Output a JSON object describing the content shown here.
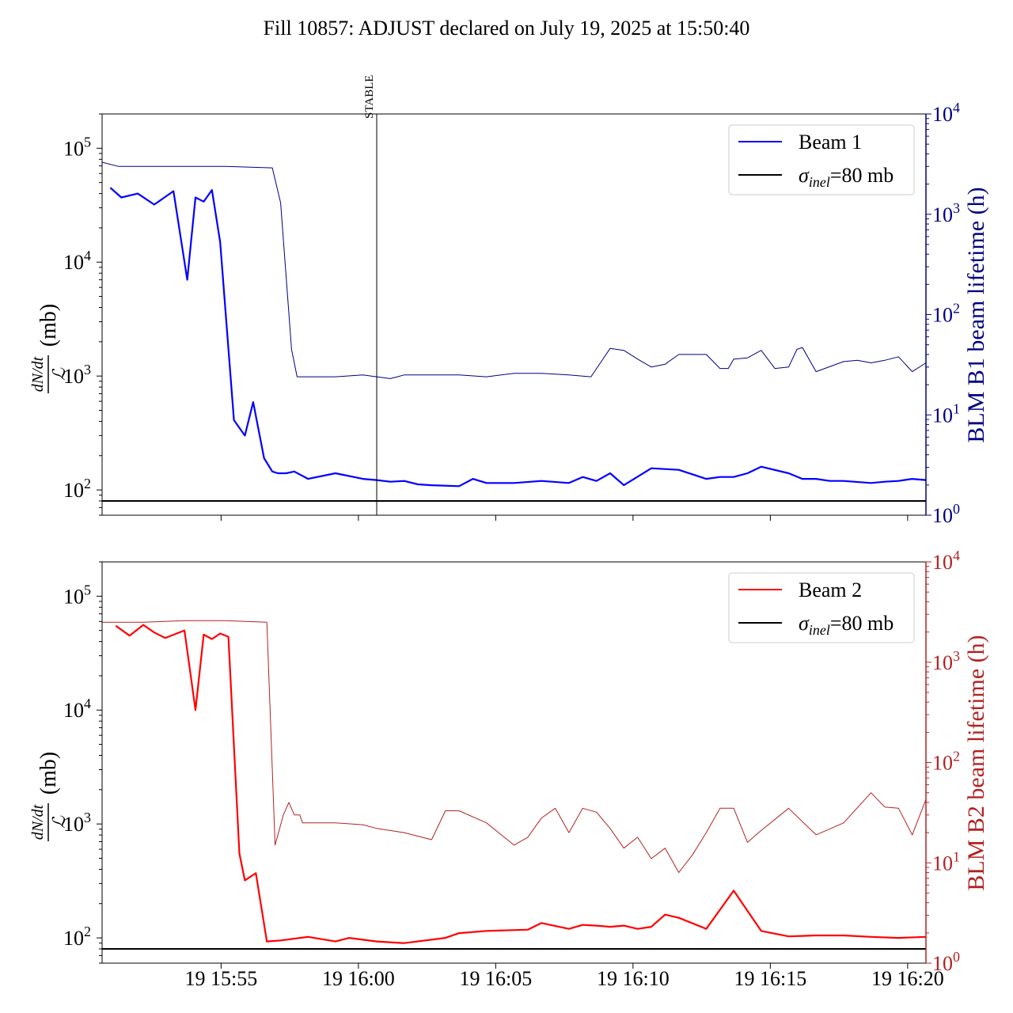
{
  "title": "Fill 10857: ADJUST declared on July 19, 2025 at 15:50:40",
  "colors": {
    "beam1_main": "#0000ff",
    "beam1_lifetime": "#000080",
    "beam1_axis": "#000080",
    "beam2_main": "#ff0000",
    "beam2_lifetime": "#b22222",
    "beam2_axis": "#b22222",
    "sigma": "#000000"
  },
  "x_tick_labels": [
    "19 15:55",
    "19 16:00",
    "19 16:05",
    "19 16:10",
    "19 16:15",
    "19 16:20"
  ],
  "chart_data": [
    {
      "type": "line",
      "panel": "top",
      "title": "Fill 10857: ADJUST declared on July 19, 2025 at 15:50:40",
      "xlabel": "",
      "ylabel": "dN/dt / ℒ (mb)",
      "y2label": "BLM B1 beam lifetime (h)",
      "xlim": [
        "2025-07-19 15:50:40",
        "2025-07-19 16:20:40"
      ],
      "ylim": [
        60,
        200000
      ],
      "y2lim": [
        1,
        10000
      ],
      "yscale": "log",
      "y2scale": "log",
      "grid": false,
      "legend_position": "top-right",
      "yticks": [
        "10^2",
        "10^3",
        "10^4",
        "10^5"
      ],
      "y2ticks": [
        "10^0",
        "10^1",
        "10^2",
        "10^3",
        "10^4"
      ],
      "annotation": {
        "text": "STABLE",
        "x": "2025-07-19 16:00:40"
      },
      "series": [
        {
          "name": "Beam 1",
          "axis": "left",
          "x_min": [
            0.3,
            0.7,
            1.3,
            1.9,
            2.6,
            3.1,
            3.4,
            3.7,
            4.0,
            4.3,
            4.8,
            5.2,
            5.5,
            5.9,
            6.2,
            6.4,
            6.7,
            7.0,
            7.5,
            8.5,
            9.5,
            10.0,
            10.5,
            11.0,
            11.5,
            12.0,
            13.0,
            13.5,
            14.0,
            15.0,
            16.0,
            17.0,
            17.5,
            18.0,
            18.5,
            19.0,
            20.0,
            21.0,
            22.0,
            22.5,
            23.0,
            23.5,
            24.0,
            25.0,
            25.5,
            26.0,
            26.5,
            27.0,
            28.0,
            28.5,
            29.0,
            29.5,
            30.0
          ],
          "values": [
            45000,
            37000,
            40000,
            32000,
            42000,
            7000,
            37000,
            34000,
            43000,
            15000,
            410,
            300,
            590,
            190,
            145,
            140,
            140,
            145,
            125,
            140,
            125,
            122,
            118,
            120,
            112,
            110,
            108,
            125,
            115,
            115,
            120,
            115,
            130,
            120,
            140,
            110,
            155,
            150,
            125,
            130,
            130,
            140,
            160,
            140,
            125,
            125,
            120,
            120,
            115,
            118,
            120,
            125,
            122
          ]
        },
        {
          "name": "",
          "axis": "right",
          "x_min": [
            0,
            0.6,
            1.5,
            3.0,
            4.5,
            6.2,
            6.5,
            6.9,
            7.1,
            7.2,
            7.5,
            8.5,
            9.5,
            10.0,
            10.5,
            11.0,
            11.5,
            12.0,
            13.0,
            14.0,
            15.0,
            16.0,
            17.0,
            17.8,
            18.5,
            19.0,
            19.5,
            20.0,
            20.5,
            21.0,
            22.0,
            22.5,
            22.8,
            23.0,
            23.5,
            24.0,
            24.5,
            25.0,
            25.3,
            25.5,
            26.0,
            27.0,
            27.5,
            28.0,
            28.5,
            29.0,
            29.5,
            30.0
          ],
          "values": [
            3300,
            3000,
            3000,
            3000,
            3000,
            2900,
            1300,
            45,
            24,
            24,
            24,
            24,
            25,
            24,
            23,
            25,
            25,
            25,
            25,
            24,
            26,
            26,
            25,
            24,
            46,
            44,
            36,
            30,
            32,
            40,
            40,
            29,
            29,
            36,
            37,
            44,
            29,
            30,
            45,
            47,
            27,
            34,
            35,
            33,
            35,
            38,
            27,
            33
          ]
        },
        {
          "name": "σ_inel=80 mb",
          "axis": "left",
          "x_min": [
            0,
            30
          ],
          "values": [
            80,
            80
          ]
        }
      ]
    },
    {
      "type": "line",
      "panel": "bottom",
      "xlabel": "",
      "ylabel": "dN/dt / ℒ (mb)",
      "y2label": "BLM B2 beam lifetime (h)",
      "xlim": [
        "2025-07-19 15:50:40",
        "2025-07-19 16:20:40"
      ],
      "ylim": [
        60,
        200000
      ],
      "y2lim": [
        1,
        10000
      ],
      "yscale": "log",
      "y2scale": "log",
      "grid": false,
      "legend_position": "top-right",
      "yticks": [
        "10^2",
        "10^3",
        "10^4",
        "10^5"
      ],
      "y2ticks": [
        "10^0",
        "10^1",
        "10^2",
        "10^3",
        "10^4"
      ],
      "series": [
        {
          "name": "Beam 2",
          "axis": "left",
          "x_min": [
            0.5,
            1.0,
            1.5,
            1.9,
            2.3,
            3.0,
            3.4,
            3.7,
            4.0,
            4.3,
            4.6,
            5.0,
            5.2,
            5.6,
            6.0,
            6.5,
            7.5,
            8.5,
            9.0,
            10.0,
            11.0,
            12.5,
            13.0,
            14.0,
            15.5,
            16.0,
            17.0,
            17.5,
            18.0,
            18.5,
            19.0,
            19.5,
            20.0,
            20.5,
            21.0,
            22.0,
            23.0,
            24.0,
            25.0,
            26.0,
            27.0,
            28.0,
            29.0,
            30.0
          ],
          "values": [
            55000,
            45000,
            56000,
            48000,
            43000,
            50000,
            10000,
            46000,
            42000,
            47000,
            44000,
            550,
            320,
            370,
            93,
            95,
            102,
            93,
            100,
            93,
            90,
            100,
            110,
            115,
            118,
            135,
            120,
            130,
            128,
            125,
            128,
            120,
            125,
            160,
            150,
            120,
            260,
            115,
            103,
            105,
            105,
            102,
            100,
            102
          ]
        },
        {
          "name": "",
          "axis": "right",
          "x_min": [
            0,
            0.6,
            1.5,
            3.0,
            4.5,
            6.0,
            6.3,
            6.6,
            6.8,
            7.0,
            7.2,
            7.3,
            7.5,
            8.5,
            9.5,
            10.0,
            11.0,
            12.0,
            12.5,
            13.0,
            14.0,
            15.0,
            15.5,
            16.0,
            16.5,
            17.0,
            17.5,
            18.0,
            18.5,
            19.0,
            19.5,
            20.0,
            20.5,
            21.0,
            21.5,
            22.0,
            22.5,
            23.0,
            23.5,
            24.0,
            25.0,
            26.0,
            27.0,
            28.0,
            28.5,
            29.0,
            29.5,
            30.0
          ],
          "values": [
            2500,
            2500,
            2500,
            2600,
            2600,
            2500,
            15,
            30,
            40,
            30,
            30,
            25,
            25,
            25,
            24,
            22,
            20,
            17,
            33,
            33,
            25,
            15,
            18,
            28,
            35,
            20,
            35,
            32,
            22,
            14,
            18,
            11,
            14,
            8,
            12,
            20,
            35,
            35,
            16,
            21,
            35,
            19,
            25,
            50,
            36,
            35,
            19,
            43
          ]
        },
        {
          "name": "σ_inel=80 mb",
          "axis": "left",
          "x_min": [
            0,
            30
          ],
          "values": [
            80,
            80
          ]
        }
      ]
    }
  ],
  "panels": [
    {
      "legend": {
        "label_1": "Beam 1",
        "label_2_prefix": "σ",
        "label_2_sub": "inel",
        "label_2_suffix": "=80 mb"
      },
      "ylabel_frac_num": "dN/dt",
      "ylabel_frac_den": "ℒ",
      "ylabel_unit": "(mb)",
      "y2label": "BLM B1 beam lifetime (h)",
      "annotation": "STABLE"
    },
    {
      "legend": {
        "label_1": "Beam 2",
        "label_2_prefix": "σ",
        "label_2_sub": "inel",
        "label_2_suffix": "=80 mb"
      },
      "ylabel_frac_num": "dN/dt",
      "ylabel_frac_den": "ℒ",
      "ylabel_unit": "(mb)",
      "y2label": "BLM B2 beam lifetime (h)"
    }
  ],
  "tick_labels_left": [
    "10",
    "10",
    "10",
    "10"
  ],
  "tick_exps_left": [
    "2",
    "3",
    "4",
    "5"
  ],
  "tick_labels_right": [
    "10",
    "10",
    "10",
    "10",
    "10"
  ],
  "tick_exps_right": [
    "0",
    "1",
    "2",
    "3",
    "4"
  ]
}
